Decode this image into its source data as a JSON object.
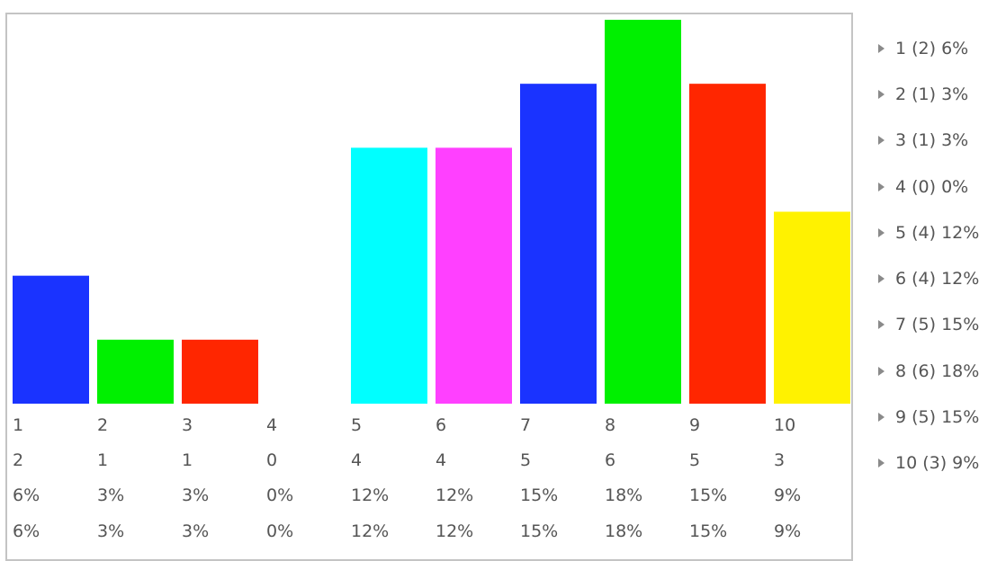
{
  "chart_data": {
    "type": "bar",
    "categories": [
      "1",
      "2",
      "3",
      "4",
      "5",
      "6",
      "7",
      "8",
      "9",
      "10"
    ],
    "values": [
      2,
      1,
      1,
      0,
      4,
      4,
      5,
      6,
      5,
      3
    ],
    "percents": [
      "6%",
      "3%",
      "3%",
      "0%",
      "12%",
      "12%",
      "15%",
      "18%",
      "15%",
      "9%"
    ],
    "colors": [
      "#1a33ff",
      "#00f000",
      "#ff2600",
      "#1a33ff",
      "#00ffff",
      "#ff40ff",
      "#1a33ff",
      "#00f000",
      "#ff2600",
      "#fff200"
    ],
    "ylim": [
      0,
      6
    ],
    "table_rows": [
      [
        "1",
        "2",
        "3",
        "4",
        "5",
        "6",
        "7",
        "8",
        "9",
        "10"
      ],
      [
        "2",
        "1",
        "1",
        "0",
        "4",
        "4",
        "5",
        "6",
        "5",
        "3"
      ],
      [
        "6%",
        "3%",
        "3%",
        "0%",
        "12%",
        "12%",
        "15%",
        "18%",
        "15%",
        "9%"
      ],
      [
        "6%",
        "3%",
        "3%",
        "0%",
        "12%",
        "12%",
        "15%",
        "18%",
        "15%",
        "9%"
      ]
    ],
    "legend": [
      "1 (2) 6%",
      "2 (1) 3%",
      "3 (1) 3%",
      "4 (0) 0%",
      "5 (4) 12%",
      "6 (4) 12%",
      "7 (5) 15%",
      "8 (6) 18%",
      "9 (5) 15%",
      "10 (3) 9%"
    ]
  }
}
